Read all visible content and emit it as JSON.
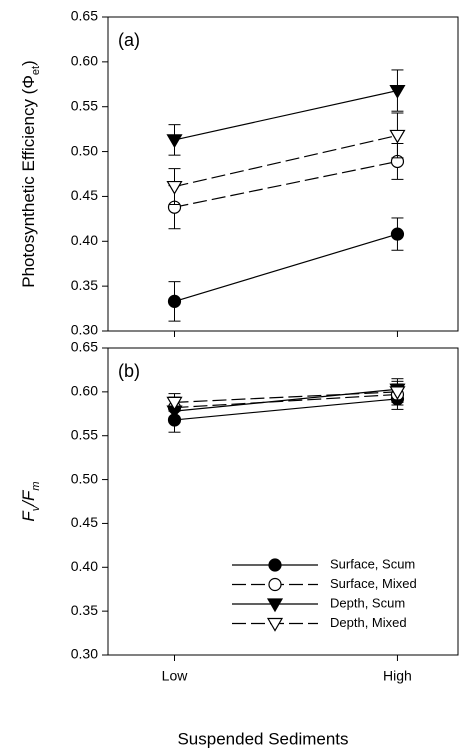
{
  "chart_data": [
    {
      "type": "line",
      "panel_label": "(a)",
      "ylabel_parts": [
        {
          "text": "Photosynthetic Efficiency (Φ",
          "sub": false
        },
        {
          "text": "et",
          "sub": true
        },
        {
          "text": ")",
          "sub": false
        }
      ],
      "categories": [
        "Low",
        "High"
      ],
      "ylim": [
        0.3,
        0.65
      ],
      "yticks": [
        {
          "value": 0.3,
          "label": "0.30"
        },
        0.35,
        {
          "value": 0.4,
          "label": "0.40"
        },
        0.45,
        {
          "value": 0.5,
          "label": "0.50"
        },
        0.55,
        {
          "value": 0.6,
          "label": "0.60"
        },
        0.65
      ],
      "series": [
        {
          "marker": "circle",
          "filled": true,
          "dashed": false,
          "color": "#000000",
          "values": [
            0.333,
            0.408
          ],
          "errors": [
            0.022,
            0.018
          ]
        },
        {
          "marker": "circle",
          "filled": false,
          "dashed": true,
          "color": "#000000",
          "values": [
            0.438,
            0.489
          ],
          "errors": [
            0.024,
            0.02
          ]
        },
        {
          "marker": "triangle",
          "filled": true,
          "dashed": false,
          "color": "#000000",
          "values": [
            0.513,
            0.568
          ],
          "errors": [
            0.017,
            0.023
          ]
        },
        {
          "marker": "triangle",
          "filled": false,
          "dashed": true,
          "color": "#000000",
          "values": [
            0.461,
            0.518
          ],
          "errors": [
            0.02,
            0.025
          ]
        }
      ]
    },
    {
      "type": "line",
      "panel_label": "(b)",
      "ylabel_parts": [
        {
          "text": "F",
          "sub": false
        },
        {
          "text": "v",
          "sub": true
        },
        {
          "text": "/F",
          "sub": false
        },
        {
          "text": "m",
          "sub": true
        }
      ],
      "categories": [
        "Low",
        "High"
      ],
      "xlabel": "Suspended Sediments",
      "ylim": [
        0.3,
        0.65
      ],
      "yticks": [
        {
          "value": 0.3,
          "label": "0.30"
        },
        0.35,
        {
          "value": 0.4,
          "label": "0.40"
        },
        0.45,
        {
          "value": 0.5,
          "label": "0.50"
        },
        0.55,
        {
          "value": 0.6,
          "label": "0.60"
        },
        0.65
      ],
      "legend": "lower right",
      "series": [
        {
          "name": "Surface, Scum",
          "marker": "circle",
          "filled": true,
          "dashed": false,
          "color": "#000000",
          "values": [
            0.568,
            0.592
          ],
          "errors": [
            0.014,
            0.012
          ]
        },
        {
          "name": "Surface, Mixed",
          "marker": "circle",
          "filled": false,
          "dashed": true,
          "color": "#000000",
          "values": [
            0.582,
            0.597
          ],
          "errors": [
            0.012,
            0.012
          ]
        },
        {
          "name": "Depth, Scum",
          "marker": "triangle",
          "filled": true,
          "dashed": false,
          "color": "#000000",
          "values": [
            0.578,
            0.603
          ],
          "errors": [
            0.013,
            0.012
          ]
        },
        {
          "name": "Depth, Mixed",
          "marker": "triangle",
          "filled": false,
          "dashed": true,
          "color": "#000000",
          "values": [
            0.588,
            0.6
          ],
          "errors": [
            0.01,
            0.012
          ]
        }
      ]
    }
  ]
}
